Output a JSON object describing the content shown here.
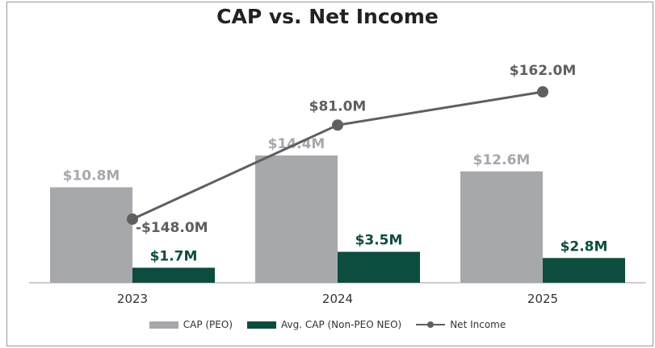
{
  "chart_data": {
    "type": "bar",
    "title": "CAP vs. Net Income",
    "categories": [
      "2023",
      "2024",
      "2025"
    ],
    "series": [
      {
        "name": "CAP (PEO)",
        "kind": "bar",
        "color": "#a6a8ab",
        "label_color": "#a6a8ab",
        "values": [
          10.8,
          14.4,
          12.6
        ],
        "labels": [
          "$10.8M",
          "$14.4M",
          "$12.6M"
        ]
      },
      {
        "name": "Avg. CAP (Non-PEO NEO)",
        "kind": "bar",
        "color": "#0d4d3f",
        "label_color": "#0d4d3f",
        "values": [
          1.7,
          3.5,
          2.8
        ],
        "labels": [
          "$1.7M",
          "$3.5M",
          "$2.8M"
        ]
      },
      {
        "name": "Net Income",
        "kind": "line",
        "color": "#5f5f5f",
        "label_color": "#5f5f5f",
        "values": [
          -148.0,
          81.0,
          162.0
        ],
        "labels": [
          "-$148.0M",
          "$81.0M",
          "$162.0M"
        ]
      }
    ],
    "bar_axis": {
      "ylim": [
        0,
        20
      ]
    },
    "line_axis": {
      "ylim": [
        -200,
        200
      ]
    },
    "grid": false,
    "legend": "bottom-center"
  }
}
